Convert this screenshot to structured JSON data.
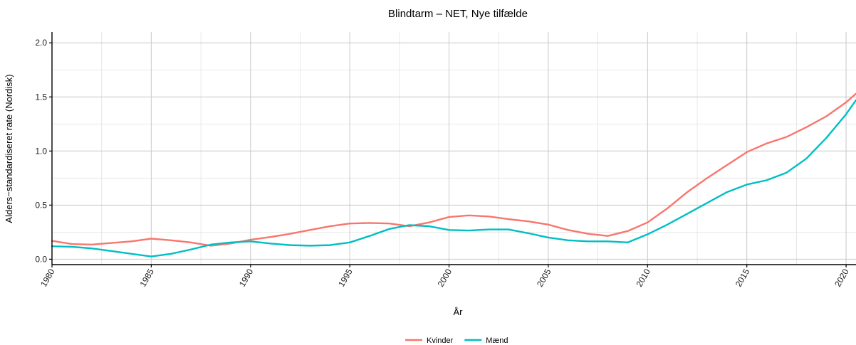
{
  "chart_data": {
    "type": "line",
    "title": "Blindtarm – NET, Nye tilfælde",
    "xlabel": "År",
    "ylabel": "Alders−standardiseret rate (Nordisk)",
    "xlim": [
      1980,
      2020.5
    ],
    "ylim": [
      -0.05,
      2.1
    ],
    "x_ticks": [
      1980,
      1985,
      1990,
      1995,
      2000,
      2005,
      2010,
      2015,
      2020
    ],
    "y_ticks": [
      0.0,
      0.5,
      1.0,
      1.5,
      2.0
    ],
    "y_tick_labels": [
      "0.0",
      "0.5",
      "1.0",
      "1.5",
      "2.0"
    ],
    "grid": true,
    "legend_position": "bottom",
    "series": [
      {
        "name": "Kvinder",
        "color": "#F8766D",
        "x": [
          1980,
          1981,
          1982,
          1983,
          1984,
          1985,
          1986,
          1987,
          1988,
          1989,
          1990,
          1991,
          1992,
          1993,
          1994,
          1995,
          1996,
          1997,
          1998,
          1999,
          2000,
          2001,
          2002,
          2003,
          2004,
          2005,
          2006,
          2007,
          2008,
          2009,
          2010,
          2011,
          2012,
          2013,
          2014,
          2015,
          2016,
          2017,
          2018,
          2019,
          2020,
          2020.5
        ],
        "values": [
          0.17,
          0.14,
          0.135,
          0.15,
          0.165,
          0.19,
          0.175,
          0.155,
          0.125,
          0.145,
          0.18,
          0.205,
          0.235,
          0.27,
          0.305,
          0.33,
          0.335,
          0.33,
          0.305,
          0.34,
          0.39,
          0.405,
          0.395,
          0.37,
          0.35,
          0.32,
          0.27,
          0.235,
          0.215,
          0.26,
          0.34,
          0.47,
          0.62,
          0.75,
          0.87,
          0.99,
          1.07,
          1.13,
          1.22,
          1.32,
          1.45,
          1.53
        ]
      },
      {
        "name": "Mænd",
        "color": "#00BFC4",
        "x": [
          1980,
          1981,
          1982,
          1983,
          1984,
          1985,
          1986,
          1987,
          1988,
          1989,
          1990,
          1991,
          1992,
          1993,
          1994,
          1995,
          1996,
          1997,
          1998,
          1999,
          2000,
          2001,
          2002,
          2003,
          2004,
          2005,
          2006,
          2007,
          2008,
          2009,
          2010,
          2011,
          2012,
          2013,
          2014,
          2015,
          2016,
          2017,
          2018,
          2019,
          2020,
          2020.5
        ],
        "values": [
          0.12,
          0.115,
          0.1,
          0.075,
          0.05,
          0.025,
          0.05,
          0.09,
          0.135,
          0.155,
          0.165,
          0.145,
          0.13,
          0.125,
          0.13,
          0.155,
          0.215,
          0.28,
          0.315,
          0.305,
          0.27,
          0.265,
          0.275,
          0.275,
          0.24,
          0.2,
          0.175,
          0.165,
          0.165,
          0.155,
          0.23,
          0.32,
          0.42,
          0.52,
          0.62,
          0.69,
          0.73,
          0.8,
          0.93,
          1.12,
          1.34,
          1.47
        ]
      }
    ]
  }
}
